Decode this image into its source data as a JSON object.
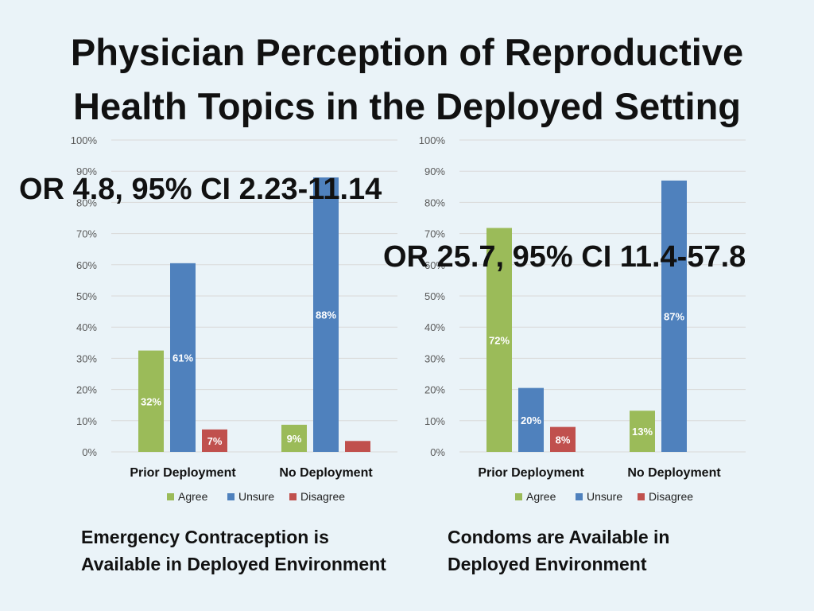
{
  "title_line1": "Physician Perception of Reproductive",
  "title_line2": "Health Topics in the Deployed Setting",
  "chart_data": [
    {
      "type": "bar",
      "title": "Emergency Contraception is Available in Deployed Environment",
      "categories": [
        "Prior Deployment",
        "No Deployment"
      ],
      "series": [
        {
          "name": "Agree",
          "color": "#9bbb59",
          "values": [
            32.5,
            8.7
          ],
          "labels": [
            "32%",
            "9%"
          ]
        },
        {
          "name": "Unsure",
          "color": "#4f81bd",
          "values": [
            60.5,
            88
          ],
          "labels": [
            "61%",
            "88%"
          ]
        },
        {
          "name": "Disagree",
          "color": "#c0504d",
          "values": [
            7.2,
            3.5
          ],
          "labels": [
            "7%",
            ""
          ]
        }
      ],
      "ylim": [
        0,
        100
      ],
      "yticks": [
        "0%",
        "10%",
        "20%",
        "30%",
        "40%",
        "50%",
        "60%",
        "70%",
        "80%",
        "90%",
        "100%"
      ],
      "legend": "bottom",
      "annotation": "OR 4.8, 95% CI 2.23-11.14"
    },
    {
      "type": "bar",
      "title": "Condoms are Available in Deployed Environment",
      "categories": [
        "Prior Deployment",
        "No Deployment"
      ],
      "series": [
        {
          "name": "Agree",
          "color": "#9bbb59",
          "values": [
            71.8,
            13.2
          ],
          "labels": [
            "72%",
            "13%"
          ]
        },
        {
          "name": "Unsure",
          "color": "#4f81bd",
          "values": [
            20.5,
            87
          ],
          "labels": [
            "20%",
            "87%"
          ]
        },
        {
          "name": "Disagree",
          "color": "#c0504d",
          "values": [
            8,
            0
          ],
          "labels": [
            "8%",
            ""
          ]
        }
      ],
      "ylim": [
        0,
        100
      ],
      "yticks": [
        "0%",
        "10%",
        "20%",
        "30%",
        "40%",
        "50%",
        "60%",
        "70%",
        "80%",
        "90%",
        "100%"
      ],
      "legend": "bottom",
      "annotation": "OR 25.7, 95% CI 11.4-57.8"
    }
  ],
  "captions": {
    "left_line1": "Emergency Contraception is",
    "left_line2": "Available in Deployed Environment",
    "right_line1": "Condoms are Available in",
    "right_line2": "Deployed Environment"
  }
}
